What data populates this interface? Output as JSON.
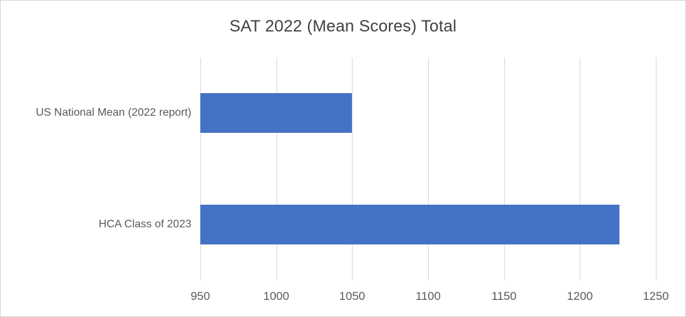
{
  "chart_data": {
    "type": "bar",
    "orientation": "horizontal",
    "title": "SAT 2022 (Mean Scores) Total",
    "categories": [
      "US National Mean (2022 report)",
      "HCA Class of 2023"
    ],
    "values": [
      1050,
      1226
    ],
    "xlabel": "",
    "ylabel": "",
    "xlim": [
      950,
      1250
    ],
    "xticks": [
      950,
      1000,
      1050,
      1100,
      1150,
      1200,
      1250
    ],
    "grid": true,
    "legend": false,
    "colors": {
      "bar": "#4472C4",
      "gridline": "#D9D9D9",
      "title_text": "#404040",
      "axis_text": "#595959",
      "background": "#FFFFFF",
      "border": "#D4D4D4"
    }
  }
}
